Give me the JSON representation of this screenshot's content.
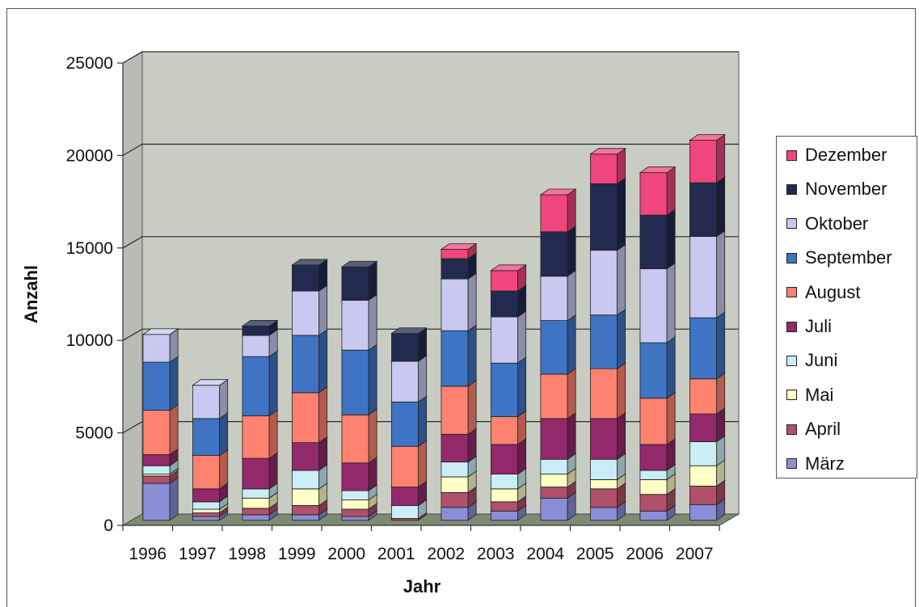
{
  "chart_data": {
    "type": "bar",
    "stacked": true,
    "three_d": true,
    "xlabel": "Jahr",
    "ylabel": "Anzahl",
    "ylim": [
      0,
      25000
    ],
    "yticks": [
      0,
      5000,
      10000,
      15000,
      20000,
      25000
    ],
    "categories": [
      "1996",
      "1997",
      "1998",
      "1999",
      "2000",
      "2001",
      "2002",
      "2003",
      "2004",
      "2005",
      "2006",
      "2007"
    ],
    "legend_position": "right",
    "grid": true,
    "series": [
      {
        "name": "März",
        "color": "#8A8ED6",
        "values": [
          2000,
          200,
          300,
          300,
          200,
          0,
          700,
          500,
          1200,
          700,
          500,
          850
        ]
      },
      {
        "name": "April",
        "color": "#B0506A",
        "values": [
          400,
          200,
          350,
          500,
          400,
          100,
          800,
          500,
          600,
          1000,
          900,
          1000
        ]
      },
      {
        "name": "Mai",
        "color": "#FFFFC6",
        "values": [
          100,
          200,
          550,
          900,
          500,
          0,
          850,
          700,
          700,
          500,
          800,
          1100
        ]
      },
      {
        "name": "Juni",
        "color": "#CBEEF6",
        "values": [
          450,
          400,
          500,
          1000,
          500,
          700,
          800,
          800,
          800,
          1100,
          500,
          1300
        ]
      },
      {
        "name": "Juli",
        "color": "#93286A",
        "values": [
          600,
          700,
          1650,
          1500,
          1500,
          1000,
          1500,
          1600,
          2200,
          2200,
          1400,
          1500
        ]
      },
      {
        "name": "August",
        "color": "#FF8270",
        "values": [
          2400,
          1800,
          2300,
          2700,
          2600,
          2200,
          2600,
          1500,
          2400,
          2700,
          2500,
          1900
        ]
      },
      {
        "name": "September",
        "color": "#3F73C4",
        "values": [
          2600,
          2000,
          3200,
          3100,
          3500,
          2400,
          3000,
          2900,
          2900,
          2900,
          3000,
          3300
        ]
      },
      {
        "name": "Oktober",
        "color": "#C8C8F0",
        "values": [
          1500,
          1800,
          1150,
          2400,
          2700,
          2200,
          2800,
          2500,
          2400,
          3500,
          4000,
          4400
        ]
      },
      {
        "name": "November",
        "color": "#222A4F",
        "values": [
          0,
          0,
          500,
          1400,
          1800,
          1500,
          1100,
          1400,
          2400,
          3600,
          2900,
          2900
        ]
      },
      {
        "name": "Dezember",
        "color": "#F0457E",
        "values": [
          0,
          0,
          0,
          0,
          0,
          0,
          500,
          1100,
          2000,
          1600,
          2300,
          2300
        ]
      }
    ]
  },
  "colors": {
    "wall": "#C9CCC2",
    "floor": "#7E8A72",
    "gridline": "#2B2B2B",
    "text": "#111111"
  }
}
